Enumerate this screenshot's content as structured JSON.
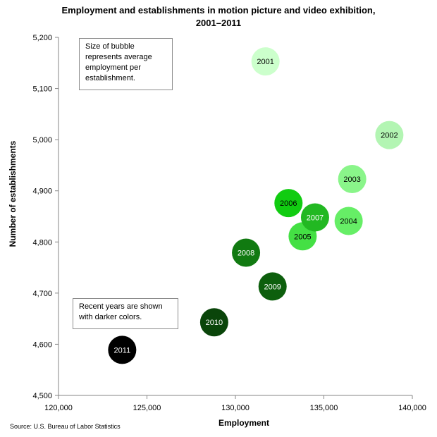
{
  "chart_data": {
    "type": "scatter",
    "title_line1": "Employment and establishments in motion picture and video exhibition,",
    "title_line2": "2001–2011",
    "xlabel": "Employment",
    "ylabel": "Number of establishments",
    "xlim": [
      120000,
      140000
    ],
    "ylim": [
      4500,
      5200
    ],
    "x_ticks": [
      120000,
      125000,
      130000,
      135000,
      140000
    ],
    "x_tick_labels": [
      "120,000",
      "125,000",
      "130,000",
      "135,000",
      "140,000"
    ],
    "y_ticks": [
      4500,
      4600,
      4700,
      4800,
      4900,
      5000,
      5100,
      5200
    ],
    "y_tick_labels": [
      "4,500",
      "4,600",
      "4,700",
      "4,800",
      "4,900",
      "5,000",
      "5,100",
      "5,200"
    ],
    "grid": false,
    "points": [
      {
        "label": "2001",
        "x": 131700,
        "y": 5153,
        "color": "#ccffcc",
        "text_color": "#000000"
      },
      {
        "label": "2002",
        "x": 138700,
        "y": 5009,
        "color": "#b3f5b3",
        "text_color": "#000000"
      },
      {
        "label": "2003",
        "x": 136600,
        "y": 4923,
        "color": "#8af58a",
        "text_color": "#000000"
      },
      {
        "label": "2004",
        "x": 136400,
        "y": 4841,
        "color": "#66ee66",
        "text_color": "#000000"
      },
      {
        "label": "2005",
        "x": 133800,
        "y": 4811,
        "color": "#44e044",
        "text_color": "#000000"
      },
      {
        "label": "2006",
        "x": 133000,
        "y": 4876,
        "color": "#11cc11",
        "text_color": "#000000"
      },
      {
        "label": "2007",
        "x": 134500,
        "y": 4848,
        "color": "#22b822",
        "text_color": "#ffffff"
      },
      {
        "label": "2008",
        "x": 130600,
        "y": 4779,
        "color": "#117a11",
        "text_color": "#ffffff"
      },
      {
        "label": "2009",
        "x": 132100,
        "y": 4713,
        "color": "#0d5f0d",
        "text_color": "#ffffff"
      },
      {
        "label": "2010",
        "x": 128800,
        "y": 4643,
        "color": "#0a450a",
        "text_color": "#ffffff"
      },
      {
        "label": "2011",
        "x": 123600,
        "y": 4589,
        "color": "#000000",
        "text_color": "#ffffff"
      }
    ],
    "annotations": {
      "size_note": "Size of bubble represents average employment per establishment.",
      "color_note": "Recent years are shown with darker colors."
    },
    "source": "Source: U.S. Bureau of Labor Statistics"
  }
}
